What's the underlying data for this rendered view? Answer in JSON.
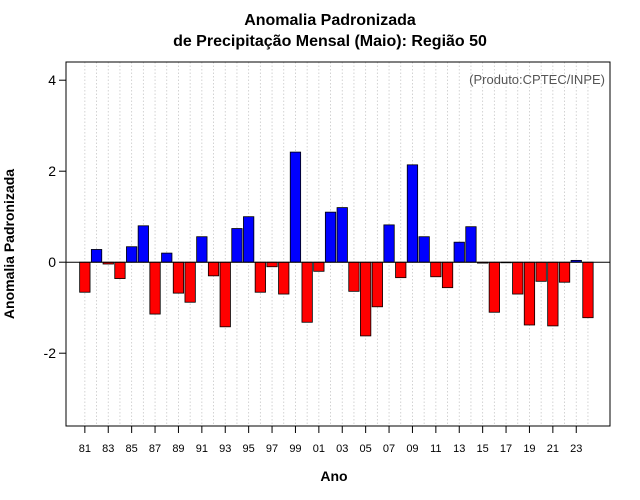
{
  "chart_data": {
    "type": "bar",
    "title": "Anomalia Padronizada",
    "subtitle": "de Precipitação Mensal (Maio): Região 50",
    "xlabel": "Ano",
    "ylabel": "Anomalia Padronizada",
    "credit": "(Produto:CPTEC/INPE)",
    "ylim": [
      -3.6,
      4.4
    ],
    "yticks": [
      -2,
      0,
      2,
      4
    ],
    "yticklabels": [
      "-2",
      "0",
      "2",
      "4"
    ],
    "grid": true,
    "positive_color": "#0000ff",
    "negative_color": "#ff0000",
    "categories": [
      "1981",
      "1982",
      "1983",
      "1984",
      "1985",
      "1986",
      "1987",
      "1988",
      "1989",
      "1990",
      "1991",
      "1992",
      "1993",
      "1994",
      "1995",
      "1996",
      "1997",
      "1998",
      "1999",
      "2000",
      "2001",
      "2002",
      "2003",
      "2004",
      "2005",
      "2006",
      "2007",
      "2008",
      "2009",
      "2010",
      "2011",
      "2012",
      "2013",
      "2014",
      "2015",
      "2016",
      "2017",
      "2018",
      "2019",
      "2020",
      "2021",
      "2022",
      "2023",
      "2024"
    ],
    "xticklabels": [
      "81",
      "83",
      "85",
      "87",
      "89",
      "91",
      "93",
      "95",
      "97",
      "99",
      "01",
      "03",
      "05",
      "07",
      "09",
      "11",
      "13",
      "15",
      "17",
      "19",
      "21",
      "23"
    ],
    "values": [
      -0.66,
      0.28,
      -0.04,
      -0.36,
      0.34,
      0.8,
      -1.14,
      0.2,
      -0.68,
      -0.88,
      0.56,
      -0.3,
      -1.42,
      0.74,
      1.0,
      -0.66,
      -0.1,
      -0.7,
      2.42,
      -1.32,
      -0.2,
      1.1,
      1.2,
      -0.64,
      -1.62,
      -0.98,
      0.82,
      -0.34,
      2.14,
      0.56,
      -0.32,
      -0.56,
      0.44,
      0.78,
      -0.02,
      -1.1,
      0.0,
      -0.7,
      -1.38,
      -0.42,
      -1.4,
      -0.44,
      0.04,
      -1.22
    ]
  }
}
